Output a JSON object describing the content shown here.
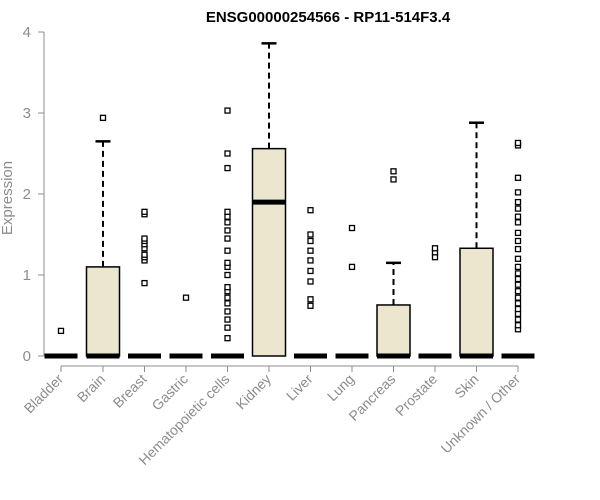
{
  "chart_data": {
    "type": "boxplot",
    "title": "ENSG00000254566 - RP11-514F3.4",
    "xlabel": "",
    "ylabel": "Expression",
    "ylim": [
      0,
      4
    ],
    "yticks": [
      0,
      1,
      2,
      3,
      4
    ],
    "grid": false,
    "colors": {
      "box_fill": "#ede6cf",
      "stroke": "#000000",
      "axis": "#8c8c8c"
    },
    "categories": [
      "Bladder",
      "Brain",
      "Breast",
      "Gastric",
      "Hematopoietic cells",
      "Kidney",
      "Liver",
      "Lung",
      "Pancreas",
      "Prostate",
      "Skin",
      "Unknown / Other"
    ],
    "boxes": [
      {
        "category": "Bladder",
        "q1": 0,
        "median": 0,
        "q3": 0,
        "whisker_low": 0,
        "whisker_high": 0,
        "outliers": [
          0.31
        ]
      },
      {
        "category": "Brain",
        "q1": 0,
        "median": 0,
        "q3": 1.1,
        "whisker_low": 0,
        "whisker_high": 2.65,
        "outliers": [
          2.94
        ]
      },
      {
        "category": "Breast",
        "q1": 0,
        "median": 0,
        "q3": 0,
        "whisker_low": 0,
        "whisker_high": 0,
        "outliers": [
          0.9,
          1.18,
          1.22,
          1.25,
          1.33,
          1.38,
          1.42,
          1.45,
          1.75,
          1.78
        ]
      },
      {
        "category": "Gastric",
        "q1": 0,
        "median": 0,
        "q3": 0,
        "whisker_low": 0,
        "whisker_high": 0,
        "outliers": [
          0.72
        ]
      },
      {
        "category": "Hematopoietic cells",
        "q1": 0,
        "median": 0,
        "q3": 0,
        "whisker_low": 0,
        "whisker_high": 0,
        "outliers": [
          0.22,
          0.35,
          0.45,
          0.55,
          0.65,
          0.72,
          0.8,
          0.85,
          1.0,
          1.1,
          1.15,
          1.3,
          1.45,
          1.55,
          1.65,
          1.72,
          1.78,
          2.32,
          2.5,
          3.03
        ]
      },
      {
        "category": "Kidney",
        "q1": 0,
        "median": 1.9,
        "q3": 2.56,
        "whisker_low": 0,
        "whisker_high": 3.86,
        "outliers": []
      },
      {
        "category": "Liver",
        "q1": 0,
        "median": 0,
        "q3": 0,
        "whisker_low": 0,
        "whisker_high": 0,
        "outliers": [
          0.62,
          0.7,
          0.92,
          1.05,
          1.18,
          1.3,
          1.42,
          1.5,
          1.8
        ]
      },
      {
        "category": "Lung",
        "q1": 0,
        "median": 0,
        "q3": 0,
        "whisker_low": 0,
        "whisker_high": 0,
        "outliers": [
          1.1,
          1.58
        ]
      },
      {
        "category": "Pancreas",
        "q1": 0,
        "median": 0,
        "q3": 0.63,
        "whisker_low": 0,
        "whisker_high": 1.15,
        "outliers": [
          2.18,
          2.28
        ]
      },
      {
        "category": "Prostate",
        "q1": 0,
        "median": 0,
        "q3": 0,
        "whisker_low": 0,
        "whisker_high": 0,
        "outliers": [
          1.22,
          1.28,
          1.33
        ]
      },
      {
        "category": "Skin",
        "q1": 0,
        "median": 0,
        "q3": 1.33,
        "whisker_low": 0,
        "whisker_high": 2.88,
        "outliers": []
      },
      {
        "category": "Unknown / Other",
        "q1": 0,
        "median": 0,
        "q3": 0,
        "whisker_low": 0,
        "whisker_high": 0,
        "outliers": [
          0.33,
          0.38,
          0.45,
          0.52,
          0.58,
          0.65,
          0.72,
          0.8,
          0.88,
          0.95,
          1.02,
          1.1,
          1.2,
          1.32,
          1.42,
          1.52,
          1.65,
          1.72,
          1.82,
          1.9,
          2.02,
          2.2,
          2.6,
          2.63
        ]
      }
    ]
  }
}
